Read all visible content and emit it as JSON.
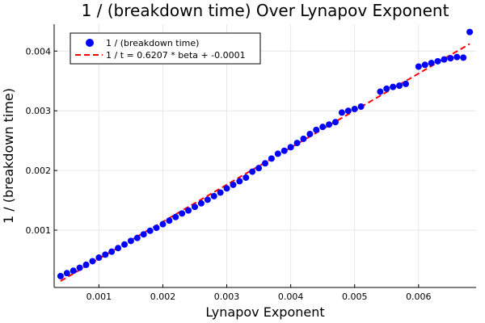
{
  "chart_data": {
    "type": "scatter",
    "title": "1 / (breakdown time) Over Lynapov Exponent",
    "xlabel": "Lynapov Exponent",
    "ylabel": "1 / (breakdown time)",
    "xlim": [
      0.0003,
      0.0069
    ],
    "ylim": [
      4e-05,
      0.00445
    ],
    "grid": true,
    "legend_position": "top-left",
    "xticks": [
      0.001,
      0.002,
      0.003,
      0.004,
      0.005,
      0.006
    ],
    "xtick_labels": [
      "0.001",
      "0.002",
      "0.003",
      "0.004",
      "0.005",
      "0.006"
    ],
    "yticks": [
      0.001,
      0.002,
      0.003,
      0.004
    ],
    "ytick_labels": [
      "0.001",
      "0.002",
      "0.003",
      "0.004"
    ],
    "series": [
      {
        "name": "1 / (breakdown time)",
        "kind": "scatter",
        "color": "#0000ff",
        "x": [
          0.0004,
          0.0005,
          0.0006,
          0.0007,
          0.0008,
          0.0009,
          0.001,
          0.0011,
          0.0012,
          0.0013,
          0.0014,
          0.0015,
          0.0016,
          0.0017,
          0.0018,
          0.0019,
          0.002,
          0.0021,
          0.0022,
          0.0023,
          0.0024,
          0.0025,
          0.0026,
          0.0027,
          0.0028,
          0.0029,
          0.003,
          0.0031,
          0.0032,
          0.0033,
          0.0034,
          0.0035,
          0.0036,
          0.0037,
          0.0038,
          0.0039,
          0.004,
          0.0041,
          0.0042,
          0.0043,
          0.0044,
          0.0045,
          0.0046,
          0.0047,
          0.0048,
          0.0049,
          0.005,
          0.0051,
          0.0054,
          0.0055,
          0.0056,
          0.0057,
          0.0058,
          0.006,
          0.0061,
          0.0062,
          0.0063,
          0.0064,
          0.0065,
          0.0066,
          0.0067,
          0.0068
        ],
        "y": [
          0.00023,
          0.00028,
          0.00032,
          0.00037,
          0.00042,
          0.00048,
          0.00054,
          0.00059,
          0.00064,
          0.0007,
          0.00076,
          0.00082,
          0.00087,
          0.00093,
          0.00099,
          0.00104,
          0.0011,
          0.00116,
          0.00122,
          0.00128,
          0.00133,
          0.00139,
          0.00145,
          0.00151,
          0.00157,
          0.00163,
          0.0017,
          0.00176,
          0.00182,
          0.00188,
          0.00198,
          0.00204,
          0.00212,
          0.0022,
          0.00228,
          0.00233,
          0.00239,
          0.00246,
          0.00253,
          0.00261,
          0.00268,
          0.00273,
          0.00277,
          0.00281,
          0.00297,
          0.003,
          0.00303,
          0.00307,
          0.00332,
          0.00337,
          0.0034,
          0.00342,
          0.00345,
          0.00374,
          0.00377,
          0.0038,
          0.00383,
          0.00386,
          0.00388,
          0.0039,
          0.00389,
          0.00432
        ]
      },
      {
        "name": "1 / t = 0.6207 * beta + -0.0001",
        "kind": "line",
        "style": "dashed",
        "color": "#ff0000",
        "slope": 0.6207,
        "intercept": -0.0001,
        "x": [
          0.0004,
          0.0068
        ]
      }
    ]
  }
}
